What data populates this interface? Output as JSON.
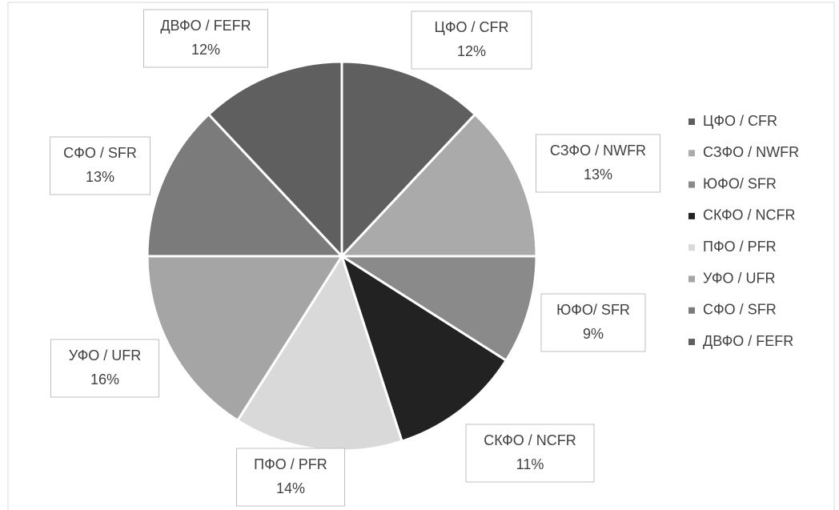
{
  "chart_data": {
    "type": "pie",
    "categories": [
      "ЦФО / CFR",
      "СЗФО / NWFR",
      "ЮФО/ SFR",
      "СКФО / NCFR",
      "ПФО / PFR",
      "УФО / UFR",
      "СФО / SFR",
      "ДВФО / FEFR"
    ],
    "values": [
      12,
      13,
      9,
      11,
      14,
      16,
      13,
      12
    ],
    "value_labels": [
      "12%",
      "13%",
      "9%",
      "11%",
      "14%",
      "16%",
      "13%",
      "12%"
    ],
    "colors": [
      "#5f5f5f",
      "#aaaaaa",
      "#8a8a8a",
      "#222222",
      "#d9d9d9",
      "#a5a5a5",
      "#7b7b7b",
      "#5f5f5f"
    ],
    "legend": "right"
  }
}
